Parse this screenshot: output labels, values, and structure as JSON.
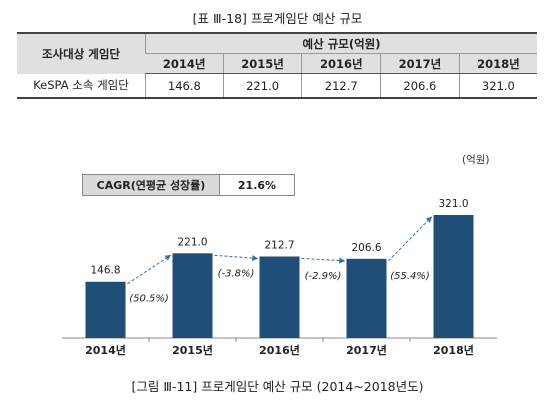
{
  "table": {
    "caption": "[표 Ⅲ-18] 프로게임단 예산 규모",
    "row_header": "조사대상 게임단",
    "group_header": "예산 규모(억원)",
    "years": [
      "2014년",
      "2015년",
      "2016년",
      "2017년",
      "2018년"
    ],
    "rows": [
      {
        "label": "KeSPA 소속 게임단",
        "values": [
          "146.8",
          "221.0",
          "212.7",
          "206.6",
          "321.0"
        ]
      }
    ]
  },
  "cagr": {
    "label": "CAGR(연평균 성장률)",
    "value": "21.6%"
  },
  "unit_label": "(억원)",
  "figure_caption": "[그림 Ⅲ-11] 프로게임단 예산 규모 (2014~2018년도)",
  "chart_data": {
    "type": "bar",
    "categories": [
      "2014년",
      "2015년",
      "2016년",
      "2017년",
      "2018년"
    ],
    "values": [
      146.8,
      221.0,
      212.7,
      206.6,
      321.0
    ],
    "value_labels": [
      "146.8",
      "221.0",
      "212.7",
      "206.6",
      "321.0"
    ],
    "growth_labels": [
      "(50.5%)",
      "(-3.8%)",
      "(-2.9%)",
      "(55.4%)"
    ],
    "bar_color": "#1f4e79",
    "arrow_color": "#3b6ea5",
    "ylim": [
      0,
      321
    ],
    "grid": false
  }
}
